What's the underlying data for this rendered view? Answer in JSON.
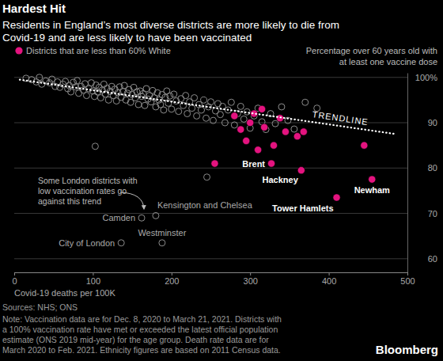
{
  "chart_data": {
    "type": "scatter",
    "title": "Hardest Hit",
    "subtitle": [
      "Residents in England’s most diverse districts are more likely to die from",
      "Covid-19 and are less likely to have been vaccinated"
    ],
    "x_label": "Covid-19 deaths per 100K",
    "y_label": [
      "Percentage over 60 years old with",
      "at least one vaccine dose"
    ],
    "xlim": [
      0,
      500
    ],
    "xticks": [
      0,
      100,
      200,
      300,
      400,
      500
    ],
    "ylim": [
      57,
      101
    ],
    "yticks": [
      60,
      70,
      80,
      90,
      {
        "value": 100,
        "label": "100%"
      }
    ],
    "grid": true,
    "legend": "top-left",
    "annotation": [
      "Some London districts with",
      "low vaccination rates go",
      "against this trend"
    ],
    "source": "Sources: NHS; ONS",
    "note": [
      "Note: Vaccination data are for Dec. 8, 2020 to March 21, 2021. Districts with",
      "a 100% vaccination rate have met or exceeded the latest official population",
      "estimate (ONS 2019 mid-year) for the age group. Death rate data are for",
      "March 2020 to Feb. 2021. Ethnicity figures are based on 2011 Census data."
    ],
    "logo": "Bloomberg",
    "series": [
      {
        "color": "#8c8c8c",
        "marker": "open-circle",
        "x": [
          22,
          28,
          32,
          35,
          40,
          45,
          48,
          52,
          55,
          58,
          62,
          65,
          68,
          70,
          72,
          75,
          78,
          80,
          82,
          85,
          88,
          90,
          92,
          95,
          98,
          100,
          102,
          104,
          106,
          108,
          110,
          112,
          114,
          116,
          118,
          120,
          122,
          124,
          126,
          128,
          130,
          132,
          134,
          136,
          138,
          140,
          142,
          144,
          146,
          148,
          150,
          152,
          154,
          156,
          158,
          160,
          162,
          164,
          166,
          168,
          170,
          172,
          174,
          176,
          178,
          180,
          182,
          184,
          186,
          188,
          190,
          192,
          194,
          196,
          198,
          200,
          203,
          206,
          209,
          212,
          215,
          218,
          220,
          223,
          226,
          229,
          232,
          235,
          238,
          241,
          244,
          247,
          250,
          253,
          256,
          259,
          262,
          265,
          268,
          272,
          276,
          280,
          284,
          288,
          292,
          296,
          300,
          305,
          310,
          315,
          320,
          326,
          332,
          340,
          348,
          356,
          370,
          385,
          103,
          245,
          15
        ],
        "values": [
          99.5,
          99,
          100,
          98.5,
          99.2,
          98.8,
          99.6,
          98,
          99,
          97.8,
          98.5,
          99.1,
          97.5,
          98.2,
          96.8,
          98.9,
          97.9,
          99.3,
          96.5,
          98,
          97.2,
          98.6,
          96,
          97.5,
          98.8,
          97,
          95.8,
          98.3,
          96.8,
          97.8,
          95.5,
          97.2,
          98.5,
          96.3,
          97.6,
          95,
          96.9,
          98,
          96,
          97.4,
          94.8,
          96.6,
          97.9,
          95.6,
          96.9,
          98.2,
          95,
          96.5,
          97.3,
          94.5,
          96.2,
          97.8,
          95.5,
          96.8,
          94,
          97,
          95.8,
          96.4,
          93.8,
          97.5,
          95.2,
          96,
          94.6,
          97.1,
          95.5,
          93.5,
          96.6,
          95,
          94,
          96.2,
          92.8,
          95.6,
          97,
          94.3,
          95.9,
          93,
          96.3,
          94.8,
          92.5,
          95.3,
          93.8,
          96,
          92,
          94.6,
          93.2,
          95.5,
          91.5,
          94,
          92.8,
          95,
          91,
          93.5,
          94.6,
          90.5,
          92.6,
          94.2,
          91.8,
          93.6,
          90,
          92.8,
          94.5,
          89.5,
          92,
          93.6,
          90.8,
          92.4,
          88.8,
          91.5,
          93.2,
          90.2,
          88.5,
          92,
          89.8,
          93.5,
          90.5,
          88.6,
          94.5,
          93.2,
          84.8,
          78,
          99.8
        ]
      },
      {
        "color": "#8c8c8c",
        "marker": "open-circle",
        "x": [
          162,
          180,
          188,
          136
        ],
        "values": [
          69,
          69.5,
          63.5,
          63.5
        ],
        "point_labels": [
          "Camden",
          "Kensington and Chelsea",
          "Westminster",
          "City of London"
        ]
      },
      {
        "name": "Districts that are less than 60% White",
        "color": "#e4137f",
        "marker": "circle",
        "x": [
          255,
          280,
          288,
          295,
          300,
          305,
          310,
          315,
          318,
          330,
          338,
          345,
          360,
          368,
          445
        ],
        "values": [
          81,
          91.5,
          88.5,
          86,
          90,
          92,
          84,
          93,
          89,
          85,
          91,
          88,
          87,
          88,
          85
        ]
      },
      {
        "color": "#e4137f",
        "marker": "circle",
        "x": [
          327,
          365,
          410,
          455
        ],
        "values": [
          81,
          79.5,
          73.5,
          77.5
        ],
        "point_labels": [
          "Brent",
          "Hackney",
          "Tower Hamlets",
          "Newham"
        ]
      },
      {
        "name": "TRENDLINE",
        "type": "line",
        "line_style": "dotted",
        "color": "#ffffff",
        "x": [
          7,
          485
        ],
        "values": [
          99.5,
          87.5
        ]
      }
    ]
  }
}
